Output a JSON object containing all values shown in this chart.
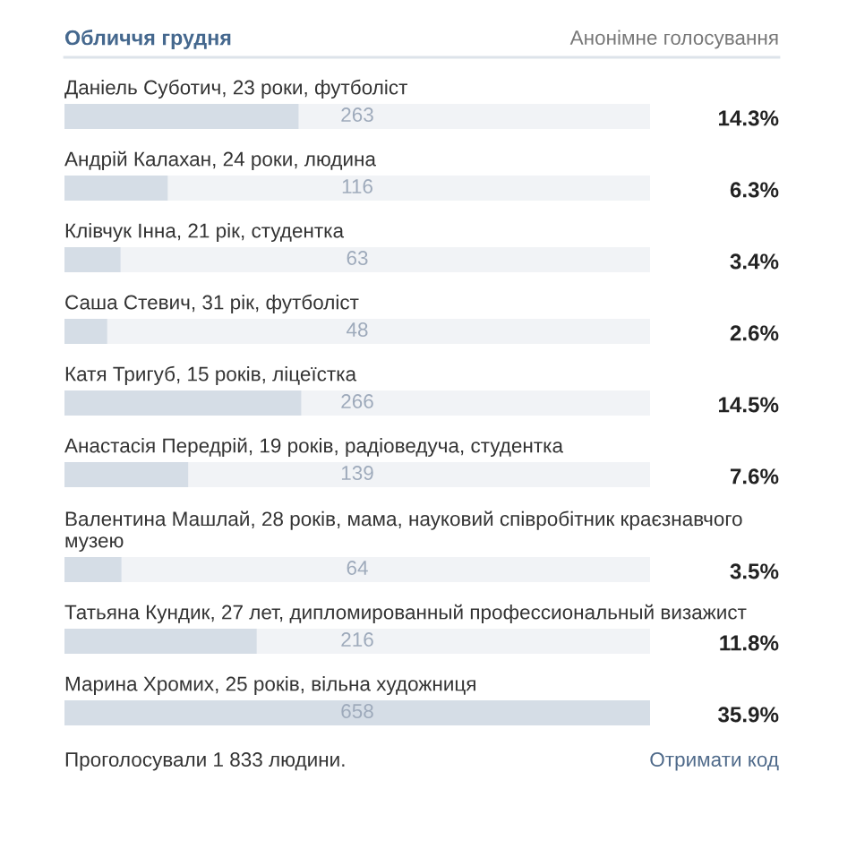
{
  "chart_data": {
    "type": "bar",
    "orientation": "horizontal",
    "title": "Обличчя грудня",
    "subtitle": "Анонімне голосування",
    "categories": [
      "Даніель Суботич, 23 роки, футболіст",
      "Андрій Калахан, 24 роки, людина",
      "Клівчук Інна, 21 рік, студентка",
      "Саша Стевич, 31 рік, футболіст",
      "Катя Тригуб, 15 років, ліцеїстка",
      "Анастасія Передрій, 19 років, радіоведуча, студентка",
      "Валентина Машлай, 28 років, мама, науковий співробітник краєзнавчого\nмузею",
      "Татьяна Кундик, 27 лет, дипломированный профессиональный визажист",
      "Марина Хромих, 25 років, вільна художниця"
    ],
    "values": [
      263,
      116,
      63,
      48,
      266,
      139,
      64,
      216,
      658
    ],
    "color": "#d5dde6",
    "data_labels": true,
    "annotations": [
      "14.3%",
      "6.3%",
      "3.4%",
      "2.6%",
      "14.5%",
      "7.6%",
      "3.5%",
      "11.8%",
      "35.9%",
      "Проголосували 1 833 людини.",
      "Отримати код"
    ]
  }
}
